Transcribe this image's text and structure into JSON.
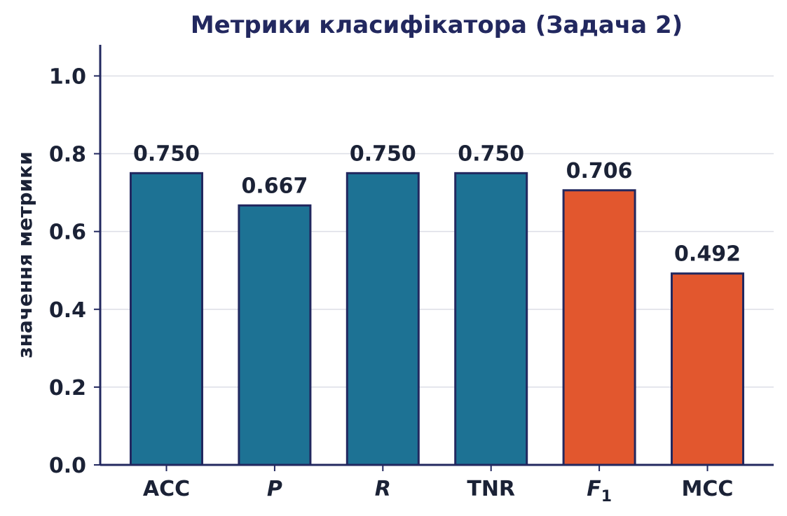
{
  "chart_data": {
    "type": "bar",
    "title": "Метрики класифікатора (Задача 2)",
    "xlabel": "",
    "ylabel": "значення метрики",
    "ylim": [
      0,
      1.08
    ],
    "yticks": [
      "0.0",
      "0.2",
      "0.4",
      "0.6",
      "0.8",
      "1.0"
    ],
    "ytick_values": [
      0.0,
      0.2,
      0.4,
      0.6,
      0.8,
      1.0
    ],
    "categories": [
      {
        "label": "ACC",
        "italic": false,
        "subscript": ""
      },
      {
        "label": "P",
        "italic": true,
        "subscript": ""
      },
      {
        "label": "R",
        "italic": true,
        "subscript": ""
      },
      {
        "label": "TNR",
        "italic": false,
        "subscript": ""
      },
      {
        "label": "F",
        "italic": true,
        "subscript": "1"
      },
      {
        "label": "MCC",
        "italic": false,
        "subscript": ""
      }
    ],
    "values": [
      0.75,
      0.667,
      0.75,
      0.75,
      0.706,
      0.492
    ],
    "value_labels": [
      "0.750",
      "0.667",
      "0.750",
      "0.750",
      "0.706",
      "0.492"
    ],
    "bar_colors": [
      "#1d7294",
      "#1d7294",
      "#1d7294",
      "#1d7294",
      "#e2572e",
      "#e2572e"
    ],
    "grid": true,
    "legend": "none"
  },
  "colors": {
    "title": "#22285f",
    "text": "#1b2236",
    "axis": "#22285f",
    "grid": "#dcdee6",
    "bar_edge": "#22285f"
  }
}
